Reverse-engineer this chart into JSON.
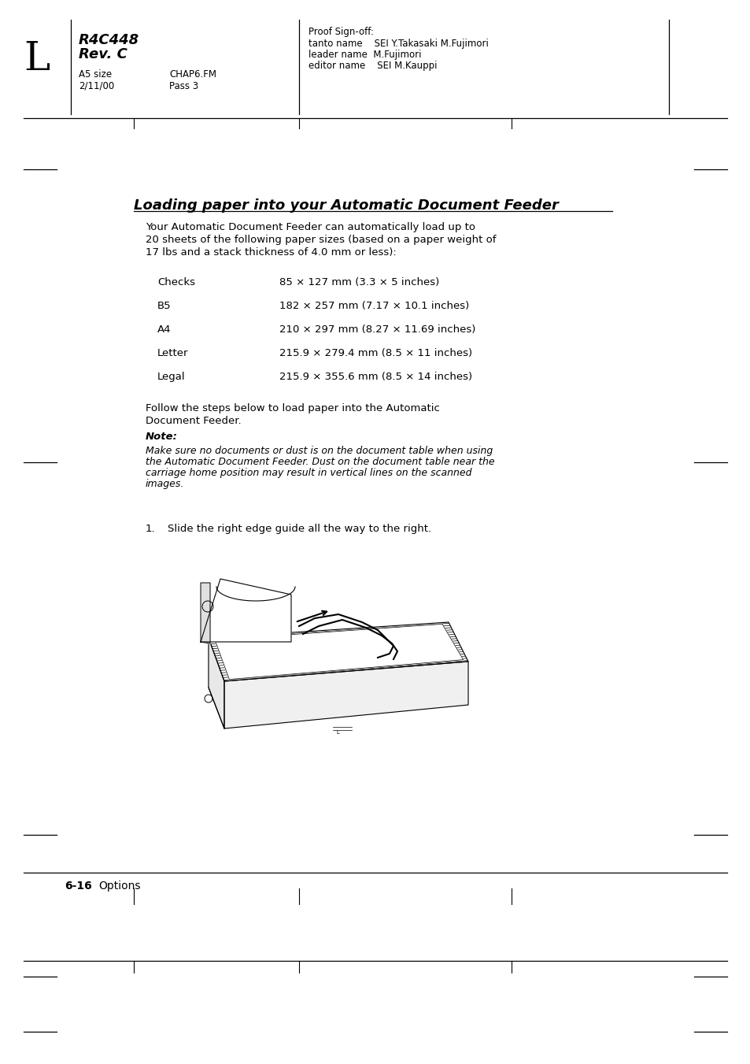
{
  "page_bg": "#ffffff",
  "letter": "L",
  "title1": "R4C448",
  "title2": "Rev. C",
  "sub1": "A5 size",
  "sub2": "2/11/00",
  "chap1": "CHAP6.FM",
  "chap2": "Pass 3",
  "proof0": "Proof Sign-off:",
  "proof1": "tanto name    SEI Y.Takasaki M.Fujimori",
  "proof2": "leader name  M.Fujimori",
  "proof3": "editor name    SEI M.Kauppi",
  "section_title": "Loading paper into your Automatic Document Feeder",
  "intro1": "Your Automatic Document Feeder can automatically load up to",
  "intro2": "20 sheets of the following paper sizes (based on a paper weight of",
  "intro3": "17 lbs and a stack thickness of 4.0 mm or less):",
  "paper_sizes": [
    [
      "Checks",
      "85 × 127 mm (3.3 × 5 inches)"
    ],
    [
      "B5",
      "182 × 257 mm (7.17 × 10.1 inches)"
    ],
    [
      "A4",
      "210 × 297 mm (8.27 × 11.69 inches)"
    ],
    [
      "Letter",
      "215.9 × 279.4 mm (8.5 × 11 inches)"
    ],
    [
      "Legal",
      "215.9 × 355.6 mm (8.5 × 14 inches)"
    ]
  ],
  "follow1": "Follow the steps below to load paper into the Automatic",
  "follow2": "Document Feeder.",
  "note_label": "Note:",
  "note1": "Make sure no documents or dust is on the document table when using",
  "note2": "the Automatic Document Feeder. Dust on the document table near the",
  "note3": "carriage home position may result in vertical lines on the scanned",
  "note4": "images.",
  "step1_num": "1.",
  "step1_text": "Slide the right edge guide all the way to the right.",
  "footer_page": "6-16",
  "footer_label": "Options"
}
